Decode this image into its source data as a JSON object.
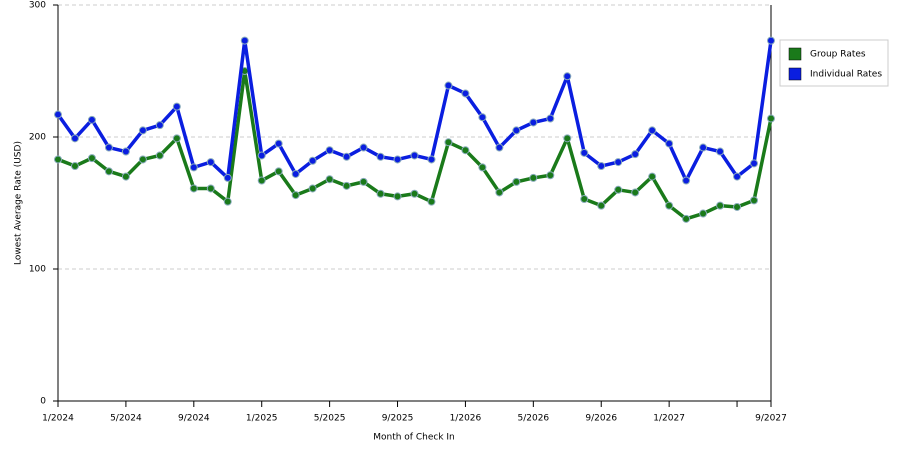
{
  "chart_data": {
    "type": "line",
    "x_label": "Month of Check In",
    "y_label": "Lowest Average Rate (USD)",
    "categories": [
      "1/2024",
      null,
      null,
      null,
      "5/2024",
      null,
      null,
      null,
      "9/2024",
      null,
      null,
      null,
      "1/2025",
      null,
      null,
      null,
      "5/2025",
      null,
      null,
      null,
      "9/2025",
      null,
      null,
      null,
      "1/2026",
      null,
      null,
      null,
      "5/2026",
      null,
      null,
      null,
      "9/2026",
      null,
      null,
      null,
      "1/2027",
      null,
      null,
      null,
      null,
      null,
      "9/2027"
    ],
    "series": [
      {
        "name": "Group Rates",
        "color": "#1a7a1a",
        "values": [
          183,
          178,
          184,
          174,
          170,
          183,
          186,
          199,
          161,
          161,
          151,
          250,
          167,
          174,
          156,
          161,
          168,
          163,
          166,
          157,
          155,
          157,
          151,
          196,
          190,
          177,
          158,
          166,
          169,
          171,
          199,
          153,
          148,
          160,
          158,
          170,
          148,
          138,
          142,
          148,
          147,
          152,
          214
        ]
      },
      {
        "name": "Individual Rates",
        "color": "#0a1ee0",
        "values": [
          217,
          199,
          213,
          192,
          189,
          205,
          209,
          223,
          177,
          181,
          169,
          273,
          186,
          195,
          172,
          182,
          190,
          185,
          192,
          185,
          183,
          186,
          183,
          239,
          233,
          215,
          192,
          205,
          211,
          214,
          246,
          188,
          178,
          181,
          187,
          205,
          195,
          167,
          192,
          189,
          170,
          180,
          273
        ]
      }
    ],
    "ylim": [
      0,
      300
    ],
    "yticks": [
      0,
      100,
      200,
      300
    ],
    "grid": true,
    "legend": "right"
  }
}
